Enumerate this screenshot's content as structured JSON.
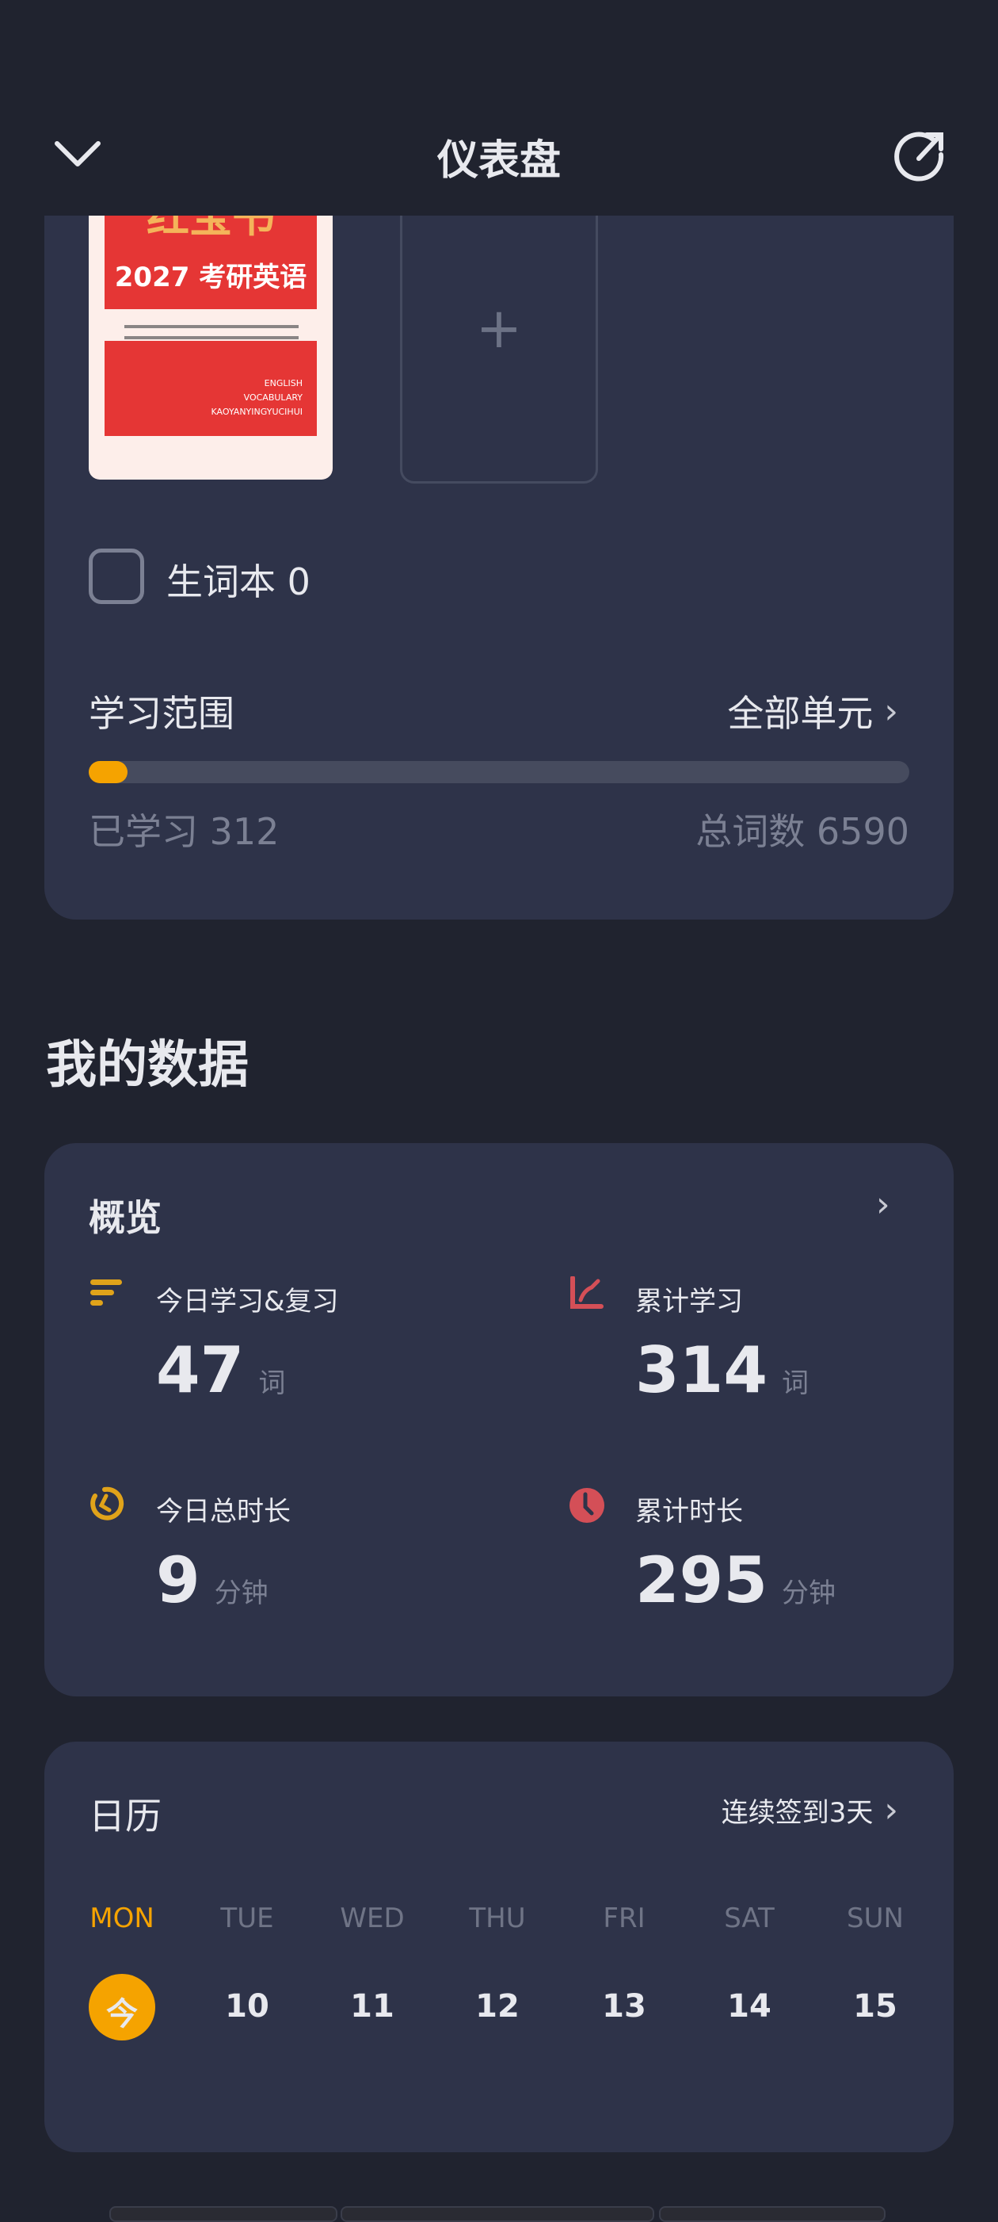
{
  "header": {
    "title": "仪表盘",
    "back_icon": "chevron-down-icon",
    "share_icon": "share-icon"
  },
  "book": {
    "title_partial": "红宝书",
    "subtitle": "2027 考研英语",
    "english": [
      "ENGLISH",
      "VOCABULARY",
      "KAOYANYINGYUCIHUI"
    ]
  },
  "vocab_book": {
    "label": "生词本 0"
  },
  "range": {
    "label": "学习范围",
    "value": "全部单元",
    "learned": "已学习 312",
    "total": "总词数 6590",
    "progress_fraction": 0.047,
    "accent": "#f5a300"
  },
  "section_title": "我的数据",
  "overview": {
    "title": "概览",
    "stats": [
      {
        "label": "今日学习&复习",
        "value": "47",
        "unit": "词",
        "icon": "list-icon",
        "color": "#e0a31a"
      },
      {
        "label": "累计学习",
        "value": "314",
        "unit": "词",
        "icon": "line-chart-icon",
        "color": "#d44f57"
      },
      {
        "label": "今日总时长",
        "value": "9",
        "unit": "分钟",
        "icon": "timer-icon",
        "color": "#e0a31a"
      },
      {
        "label": "累计时长",
        "value": "295",
        "unit": "分钟",
        "icon": "clock-icon",
        "color": "#d44f57"
      }
    ]
  },
  "calendar": {
    "title": "日历",
    "streak": "连续签到3天",
    "days": [
      "MON",
      "TUE",
      "WED",
      "THU",
      "FRI",
      "SAT",
      "SUN"
    ],
    "dates": [
      "今",
      "10",
      "11",
      "12",
      "13",
      "14",
      "15"
    ]
  }
}
